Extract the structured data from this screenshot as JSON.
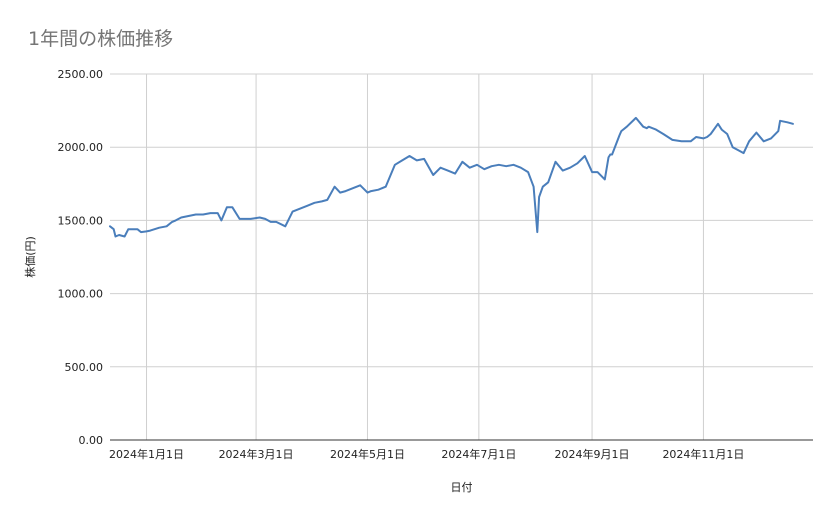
{
  "chart_data": {
    "type": "line",
    "title": "1年間の株価推移",
    "xlabel": "日付",
    "ylabel": "株価(円)",
    "ylim": [
      0,
      2500
    ],
    "yticks": [
      "0.00",
      "500.00",
      "1000.00",
      "1500.00",
      "2000.00",
      "2500.00"
    ],
    "ytick_values": [
      0,
      500,
      1000,
      1500,
      2000,
      2500
    ],
    "xticks": [
      {
        "label": "2024年1月1日",
        "date": "2024-01-01"
      },
      {
        "label": "2024年3月1日",
        "date": "2024-03-01"
      },
      {
        "label": "2024年5月1日",
        "date": "2024-05-01"
      },
      {
        "label": "2024年7月1日",
        "date": "2024-07-01"
      },
      {
        "label": "2024年9月1日",
        "date": "2024-09-01"
      },
      {
        "label": "2024年11月1日",
        "date": "2024-11-01"
      }
    ],
    "xlim": [
      "2023-12-12",
      "2024-12-31"
    ],
    "grid": true,
    "line_color": "#4a7ebb",
    "series": [
      {
        "x": [
          "2023-12-12",
          "2023-12-14",
          "2023-12-15",
          "2023-12-17",
          "2023-12-20",
          "2023-12-22",
          "2023-12-24",
          "2023-12-27",
          "2023-12-29",
          "2024-01-01",
          "2024-01-03",
          "2024-01-08",
          "2024-01-12",
          "2024-01-15",
          "2024-01-17",
          "2024-01-20",
          "2024-01-24",
          "2024-01-28",
          "2024-02-01",
          "2024-02-05",
          "2024-02-09",
          "2024-02-11",
          "2024-02-14",
          "2024-02-17",
          "2024-02-21",
          "2024-02-27",
          "2024-03-03",
          "2024-03-06",
          "2024-03-09",
          "2024-03-12",
          "2024-03-17",
          "2024-03-21",
          "2024-03-25",
          "2024-03-29",
          "2024-04-02",
          "2024-04-06",
          "2024-04-09",
          "2024-04-13",
          "2024-04-16",
          "2024-04-19",
          "2024-04-23",
          "2024-04-27",
          "2024-05-01",
          "2024-05-03",
          "2024-05-07",
          "2024-05-11",
          "2024-05-16",
          "2024-05-20",
          "2024-05-24",
          "2024-05-28",
          "2024-06-01",
          "2024-06-06",
          "2024-06-10",
          "2024-06-14",
          "2024-06-18",
          "2024-06-22",
          "2024-06-26",
          "2024-06-30",
          "2024-07-04",
          "2024-07-08",
          "2024-07-12",
          "2024-07-16",
          "2024-07-20",
          "2024-07-24",
          "2024-07-28",
          "2024-07-31",
          "2024-08-02",
          "2024-08-03",
          "2024-08-05",
          "2024-08-08",
          "2024-08-12",
          "2024-08-16",
          "2024-08-20",
          "2024-08-24",
          "2024-08-28",
          "2024-09-01",
          "2024-09-04",
          "2024-09-08",
          "2024-09-10",
          "2024-09-11",
          "2024-09-12",
          "2024-09-16",
          "2024-09-17",
          "2024-09-20",
          "2024-09-25",
          "2024-09-29",
          "2024-10-01",
          "2024-10-02",
          "2024-10-06",
          "2024-10-10",
          "2024-10-15",
          "2024-10-20",
          "2024-10-25",
          "2024-10-28",
          "2024-11-01",
          "2024-11-03",
          "2024-11-05",
          "2024-11-09",
          "2024-11-11",
          "2024-11-14",
          "2024-11-17",
          "2024-11-20",
          "2024-11-23",
          "2024-11-26",
          "2024-11-30",
          "2024-12-04",
          "2024-12-08",
          "2024-12-12",
          "2024-12-13",
          "2024-12-17",
          "2024-12-20"
        ],
        "values": [
          1460,
          1440,
          1390,
          1400,
          1390,
          1440,
          1440,
          1440,
          1420,
          1425,
          1430,
          1450,
          1460,
          1490,
          1500,
          1520,
          1530,
          1540,
          1540,
          1550,
          1550,
          1500,
          1590,
          1590,
          1510,
          1510,
          1520,
          1510,
          1490,
          1490,
          1460,
          1560,
          1580,
          1600,
          1620,
          1630,
          1640,
          1730,
          1690,
          1700,
          1720,
          1740,
          1690,
          1700,
          1710,
          1730,
          1880,
          1910,
          1940,
          1910,
          1920,
          1810,
          1860,
          1840,
          1820,
          1900,
          1860,
          1880,
          1850,
          1870,
          1880,
          1870,
          1880,
          1860,
          1830,
          1730,
          1420,
          1660,
          1730,
          1760,
          1900,
          1840,
          1860,
          1890,
          1940,
          1830,
          1830,
          1780,
          1930,
          1950,
          1950,
          2080,
          2110,
          2140,
          2200,
          2140,
          2130,
          2140,
          2120,
          2090,
          2050,
          2040,
          2040,
          2070,
          2060,
          2070,
          2090,
          2160,
          2120,
          2090,
          2000,
          1980,
          1960,
          2040,
          2100,
          2040,
          2060,
          2110,
          2180,
          2170,
          2160
        ]
      }
    ]
  }
}
